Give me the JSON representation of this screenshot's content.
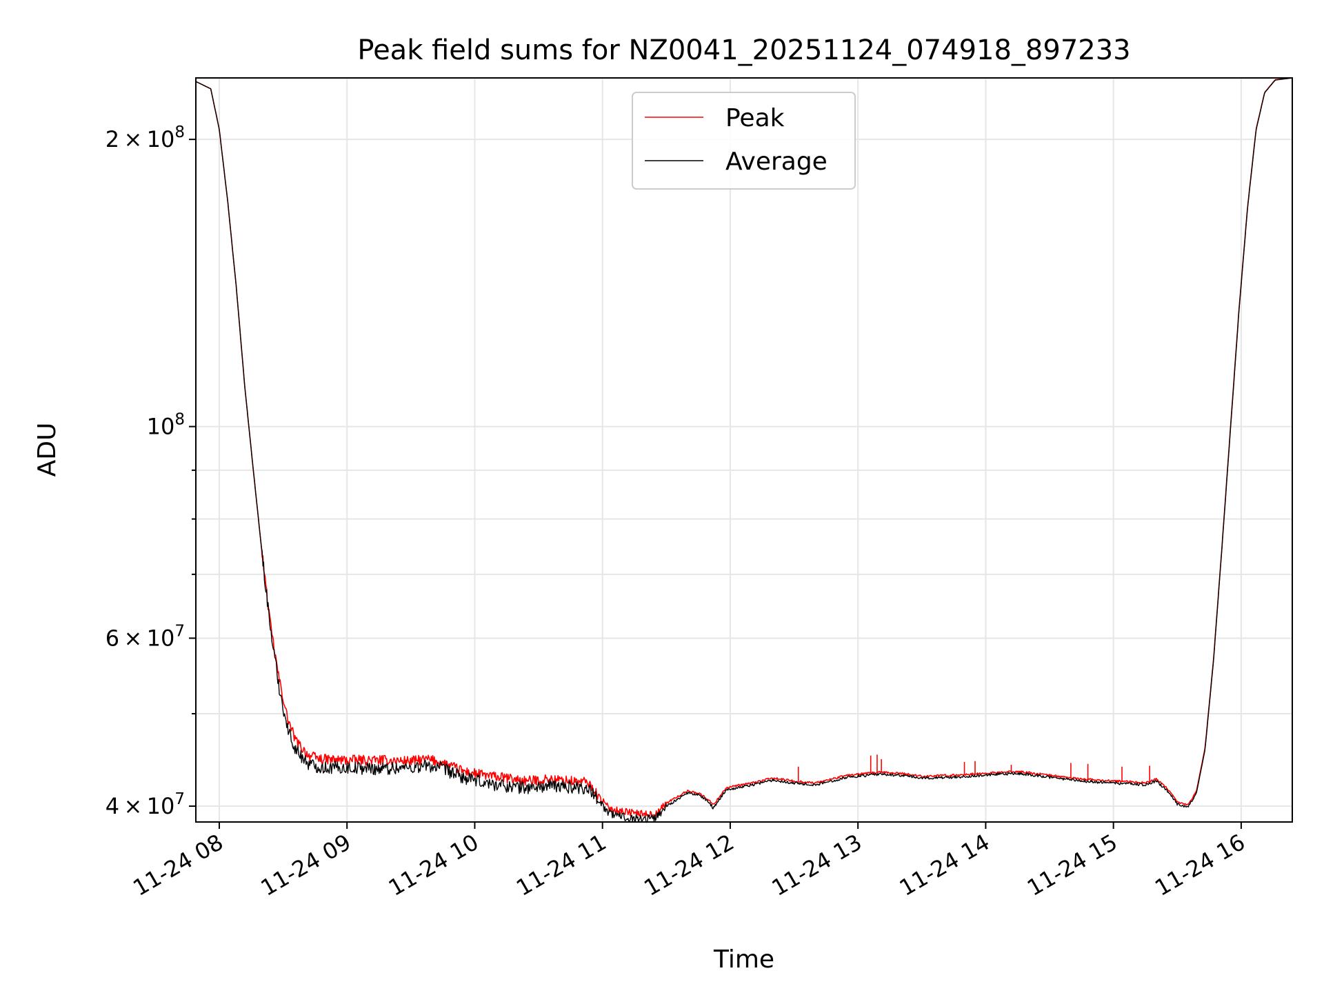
{
  "chart_data": {
    "type": "line",
    "title": "Peak field sums for NZ0041_20251124_074918_897233",
    "xlabel": "Time",
    "ylabel": "ADU",
    "yscale": "log",
    "grid": true,
    "legend_position": "upper center",
    "xlim": [
      "2025-11-24T07:49",
      "2025-11-24T16:24"
    ],
    "ylim": [
      38500000,
      232000000
    ],
    "x_ticks": [
      {
        "value": "2025-11-24T08:00",
        "label": "11-24 08"
      },
      {
        "value": "2025-11-24T09:00",
        "label": "11-24 09"
      },
      {
        "value": "2025-11-24T10:00",
        "label": "11-24 10"
      },
      {
        "value": "2025-11-24T11:00",
        "label": "11-24 11"
      },
      {
        "value": "2025-11-24T12:00",
        "label": "11-24 12"
      },
      {
        "value": "2025-11-24T13:00",
        "label": "11-24 13"
      },
      {
        "value": "2025-11-24T14:00",
        "label": "11-24 14"
      },
      {
        "value": "2025-11-24T15:00",
        "label": "11-24 15"
      },
      {
        "value": "2025-11-24T16:00",
        "label": "11-24 16"
      }
    ],
    "y_major_ticks": [
      {
        "value": 40000000,
        "mantissa": "4",
        "exponent": "7"
      },
      {
        "value": 60000000,
        "mantissa": "6",
        "exponent": "7"
      },
      {
        "value": 100000000,
        "mantissa": "",
        "exponent": "8"
      },
      {
        "value": 200000000,
        "mantissa": "2",
        "exponent": "8"
      }
    ],
    "y_minor_ticks": [
      50000000,
      70000000,
      80000000,
      90000000
    ],
    "times_label": "10",
    "series": [
      {
        "name": "Peak",
        "color": "#ff0000",
        "points": [
          [
            "07:49",
            230000000
          ],
          [
            "07:56",
            226000000
          ],
          [
            "08:00",
            205000000
          ],
          [
            "08:04",
            172000000
          ],
          [
            "08:08",
            140000000
          ],
          [
            "08:12",
            110000000
          ],
          [
            "08:16",
            90000000
          ],
          [
            "08:20",
            74000000
          ],
          [
            "08:24",
            62000000
          ],
          [
            "08:28",
            54500000
          ],
          [
            "08:32",
            49500000
          ],
          [
            "08:36",
            46800000
          ],
          [
            "08:42",
            45200000
          ],
          [
            "08:48",
            44800000
          ],
          [
            "09:00",
            44700000
          ],
          [
            "09:15",
            44700000
          ],
          [
            "09:30",
            44600000
          ],
          [
            "09:38",
            44800000
          ],
          [
            "09:45",
            44400000
          ],
          [
            "09:55",
            43500000
          ],
          [
            "10:05",
            43100000
          ],
          [
            "10:15",
            42800000
          ],
          [
            "10:25",
            42500000
          ],
          [
            "10:35",
            42700000
          ],
          [
            "10:45",
            42500000
          ],
          [
            "10:53",
            42400000
          ],
          [
            "10:58",
            41000000
          ],
          [
            "11:03",
            39800000
          ],
          [
            "11:10",
            39500000
          ],
          [
            "11:18",
            39300000
          ],
          [
            "11:25",
            39200000
          ],
          [
            "11:30",
            40300000
          ],
          [
            "11:40",
            41500000
          ],
          [
            "11:45",
            41300000
          ],
          [
            "11:50",
            40600000
          ],
          [
            "11:52",
            40100000
          ],
          [
            "11:58",
            41800000
          ],
          [
            "12:10",
            42300000
          ],
          [
            "12:20",
            42800000
          ],
          [
            "12:30",
            42500000
          ],
          [
            "12:40",
            42300000
          ],
          [
            "12:55",
            43100000
          ],
          [
            "13:10",
            43400000
          ],
          [
            "13:20",
            43300000
          ],
          [
            "13:30",
            43000000
          ],
          [
            "13:45",
            43100000
          ],
          [
            "14:00",
            43300000
          ],
          [
            "14:15",
            43500000
          ],
          [
            "14:30",
            43100000
          ],
          [
            "14:45",
            42700000
          ],
          [
            "15:00",
            42500000
          ],
          [
            "15:10",
            42400000
          ],
          [
            "15:15",
            42300000
          ],
          [
            "15:20",
            42700000
          ],
          [
            "15:25",
            41800000
          ],
          [
            "15:30",
            40400000
          ],
          [
            "15:35",
            40100000
          ],
          [
            "15:39",
            41500000
          ],
          [
            "15:43",
            46000000
          ],
          [
            "15:47",
            57000000
          ],
          [
            "15:51",
            75000000
          ],
          [
            "15:55",
            100000000
          ],
          [
            "15:59",
            133000000
          ],
          [
            "16:03",
            170000000
          ],
          [
            "16:07",
            205000000
          ],
          [
            "16:11",
            224000000
          ],
          [
            "16:16",
            231000000
          ],
          [
            "16:24",
            232000000
          ]
        ],
        "spikes": [
          [
            "12:32",
            44000000
          ],
          [
            "13:06",
            45200000
          ],
          [
            "13:09",
            45300000
          ],
          [
            "13:11",
            44800000
          ],
          [
            "13:50",
            44500000
          ],
          [
            "13:55",
            44600000
          ],
          [
            "14:12",
            44200000
          ],
          [
            "14:40",
            44400000
          ],
          [
            "14:48",
            44300000
          ],
          [
            "15:04",
            44000000
          ],
          [
            "15:17",
            44100000
          ]
        ]
      },
      {
        "name": "Average",
        "color": "#000000",
        "points": [
          [
            "07:49",
            230000000
          ],
          [
            "07:56",
            226000000
          ],
          [
            "08:00",
            205000000
          ],
          [
            "08:04",
            172000000
          ],
          [
            "08:08",
            140000000
          ],
          [
            "08:12",
            110000000
          ],
          [
            "08:16",
            90000000
          ],
          [
            "08:20",
            74000000
          ],
          [
            "08:24",
            61500000
          ],
          [
            "08:28",
            53500000
          ],
          [
            "08:32",
            48300000
          ],
          [
            "08:36",
            45800000
          ],
          [
            "08:42",
            44300000
          ],
          [
            "08:48",
            43900000
          ],
          [
            "09:00",
            43900000
          ],
          [
            "09:15",
            43800000
          ],
          [
            "09:30",
            43900000
          ],
          [
            "09:38",
            44100000
          ],
          [
            "09:45",
            43800000
          ],
          [
            "09:55",
            42800000
          ],
          [
            "10:05",
            42300000
          ],
          [
            "10:15",
            42000000
          ],
          [
            "10:25",
            41800000
          ],
          [
            "10:35",
            42000000
          ],
          [
            "10:45",
            41900000
          ],
          [
            "10:53",
            41800000
          ],
          [
            "10:58",
            40700000
          ],
          [
            "11:03",
            39300000
          ],
          [
            "11:10",
            39000000
          ],
          [
            "11:18",
            38800000
          ],
          [
            "11:25",
            38900000
          ],
          [
            "11:30",
            40000000
          ],
          [
            "11:40",
            41300000
          ],
          [
            "11:45",
            41100000
          ],
          [
            "11:50",
            40400000
          ],
          [
            "11:52",
            39800000
          ],
          [
            "11:58",
            41600000
          ],
          [
            "12:10",
            42100000
          ],
          [
            "12:20",
            42600000
          ],
          [
            "12:30",
            42300000
          ],
          [
            "12:40",
            42100000
          ],
          [
            "12:55",
            42900000
          ],
          [
            "13:10",
            43200000
          ],
          [
            "13:20",
            43100000
          ],
          [
            "13:30",
            42800000
          ],
          [
            "13:45",
            42900000
          ],
          [
            "14:00",
            43100000
          ],
          [
            "14:15",
            43300000
          ],
          [
            "14:30",
            42900000
          ],
          [
            "14:45",
            42500000
          ],
          [
            "15:00",
            42300000
          ],
          [
            "15:10",
            42200000
          ],
          [
            "15:15",
            42100000
          ],
          [
            "15:20",
            42500000
          ],
          [
            "15:25",
            41600000
          ],
          [
            "15:30",
            40200000
          ],
          [
            "15:35",
            39900000
          ],
          [
            "15:39",
            41300000
          ],
          [
            "15:43",
            45800000
          ],
          [
            "15:47",
            56800000
          ],
          [
            "15:51",
            74800000
          ],
          [
            "15:55",
            99500000
          ],
          [
            "15:59",
            132500000
          ],
          [
            "16:03",
            169500000
          ],
          [
            "16:07",
            204500000
          ],
          [
            "16:11",
            223800000
          ],
          [
            "16:16",
            230800000
          ],
          [
            "16:24",
            232000000
          ]
        ]
      }
    ]
  }
}
